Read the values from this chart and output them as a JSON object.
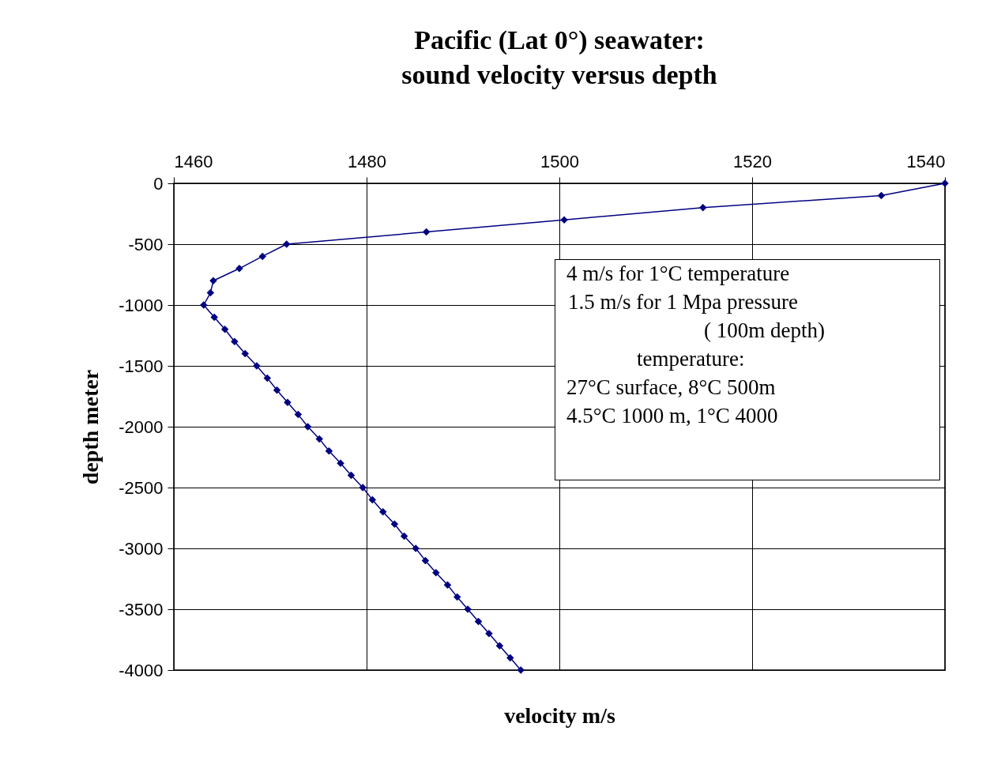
{
  "chart_data": {
    "type": "line",
    "title": "Pacific (Lat 0°) seawater:\nsound velocity versus depth",
    "xlabel": "velocity m/s",
    "ylabel": "depth meter",
    "xlim": [
      1460,
      1540
    ],
    "xticks": [
      1460,
      1480,
      1500,
      1520,
      1540
    ],
    "ylim": [
      -4000,
      0
    ],
    "yticks": [
      0,
      -500,
      -1000,
      -1500,
      -2000,
      -2500,
      -3000,
      -3500,
      -4000
    ],
    "grid": true,
    "marker": "diamond",
    "line_style": "solid",
    "annotations": [
      "4 m/s for 1°C temperature",
      "1.5 m/s for 1 Mpa pressure",
      "( 100m depth)",
      "temperature:",
      "27°C surface, 8°C 500m",
      "4.5°C 1000 m, 1°C 4000"
    ],
    "series": [
      {
        "color": "#000080",
        "x": [
          1540,
          1533.4,
          1514.9,
          1500.5,
          1486.2,
          1471.7,
          1469.2,
          1466.8,
          1464.1,
          1463.8,
          1463.1,
          1464.2,
          1465.3,
          1466.3,
          1467.4,
          1468.6,
          1469.7,
          1470.7,
          1471.8,
          1472.9,
          1473.9,
          1475.1,
          1476.1,
          1477.3,
          1478.4,
          1479.6,
          1480.6,
          1481.7,
          1482.9,
          1483.9,
          1485.1,
          1486.1,
          1487.2,
          1488.4,
          1489.4,
          1490.5,
          1491.6,
          1492.7,
          1493.8,
          1494.9,
          1496.0
        ],
        "values": [
          0,
          -100,
          -200,
          -300,
          -400,
          -500,
          -600,
          -700,
          -800,
          -900,
          -1000,
          -1100,
          -1200,
          -1300,
          -1400,
          -1500,
          -1600,
          -1700,
          -1800,
          -1900,
          -2000,
          -2100,
          -2200,
          -2300,
          -2400,
          -2500,
          -2600,
          -2700,
          -2800,
          -2900,
          -3000,
          -3100,
          -3200,
          -3300,
          -3400,
          -3500,
          -3600,
          -3700,
          -3800,
          -3900,
          -4000
        ]
      }
    ]
  }
}
